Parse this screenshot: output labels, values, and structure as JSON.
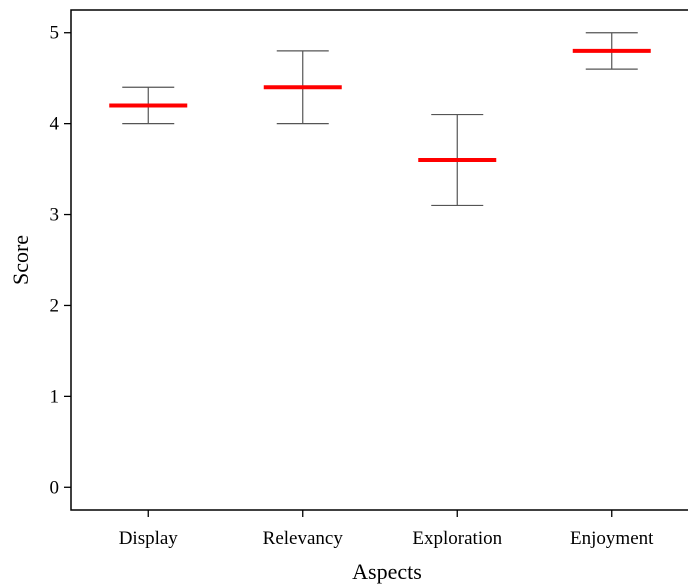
{
  "chart_data": {
    "type": "errorbar",
    "categories": [
      "Display",
      "Relevancy",
      "Exploration",
      "Enjoyment"
    ],
    "values": [
      4.2,
      4.4,
      3.6,
      4.8
    ],
    "error_low": [
      4.0,
      4.0,
      3.1,
      4.6
    ],
    "error_high": [
      4.4,
      4.8,
      4.1,
      5.0
    ],
    "xlabel": "Aspects",
    "ylabel": "Score",
    "ylim": [
      -0.25,
      5.25
    ],
    "yticks": [
      0,
      1,
      2,
      3,
      4,
      5
    ],
    "grid": false,
    "legend": "none",
    "colors": {
      "mean": "#ff0000",
      "whisker": "#555555",
      "axis": "#000000"
    }
  }
}
